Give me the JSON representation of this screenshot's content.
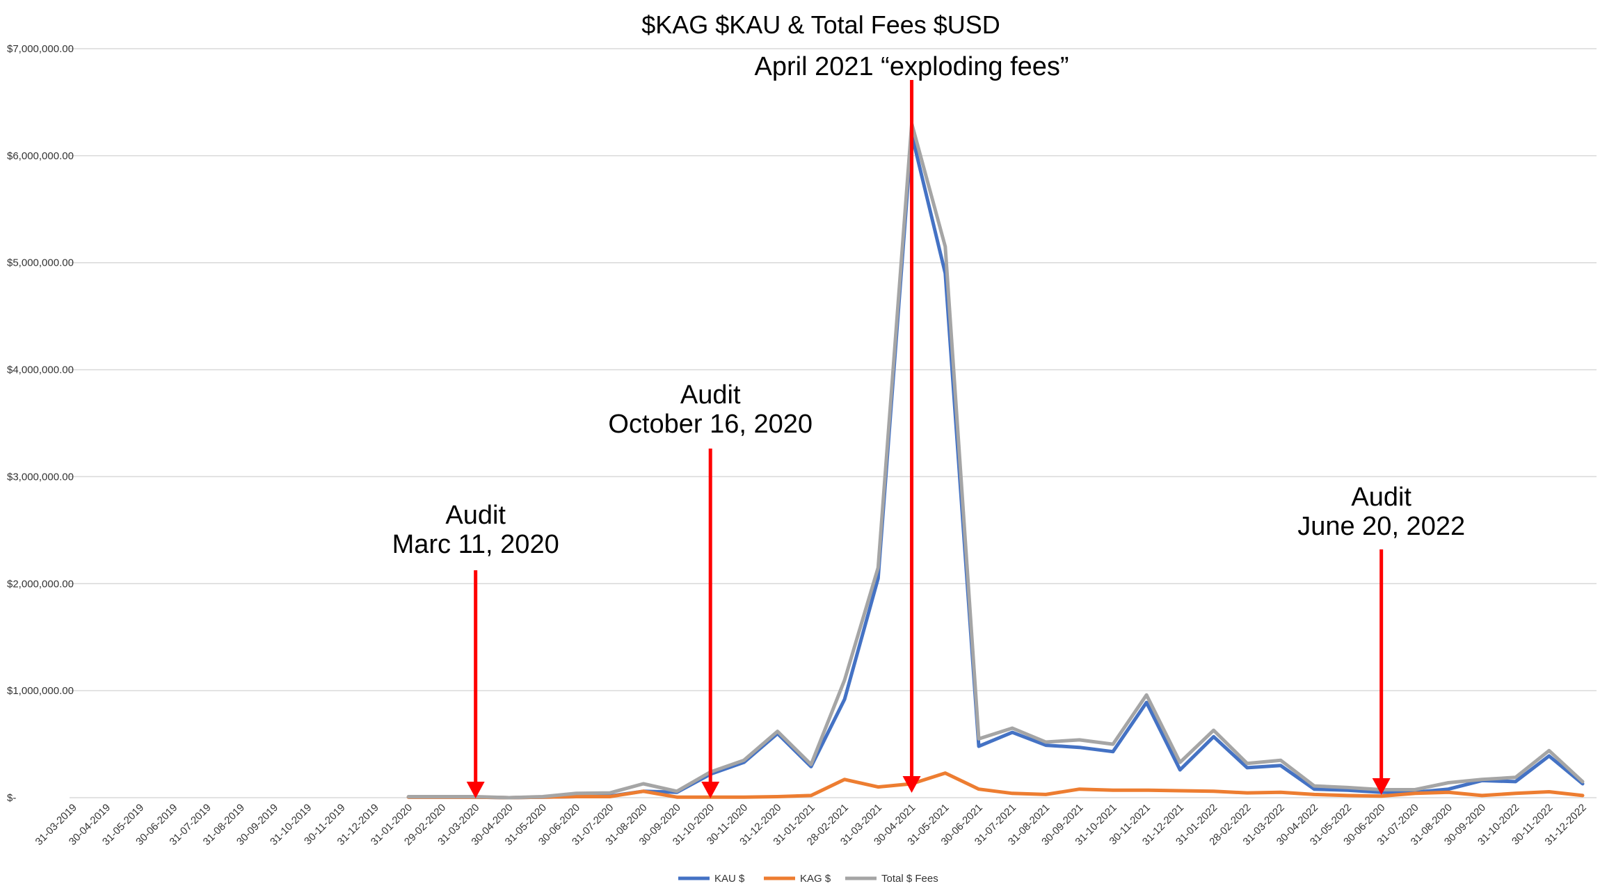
{
  "chart_data": {
    "type": "line",
    "title": "$KAG $KAU & Total Fees $USD",
    "xlabel": "",
    "ylabel": "",
    "ylim": [
      0,
      7000000
    ],
    "y_ticks": [
      {
        "value": 0,
        "label": "$-"
      },
      {
        "value": 1000000,
        "label": "$1,000,000.00"
      },
      {
        "value": 2000000,
        "label": "$2,000,000.00"
      },
      {
        "value": 3000000,
        "label": "$3,000,000.00"
      },
      {
        "value": 4000000,
        "label": "$4,000,000.00"
      },
      {
        "value": 5000000,
        "label": "$5,000,000.00"
      },
      {
        "value": 6000000,
        "label": "$6,000,000.00"
      },
      {
        "value": 7000000,
        "label": "$7,000,000.00"
      }
    ],
    "grid": true,
    "legend_position": "bottom",
    "categories": [
      "31-03-2019",
      "30-04-2019",
      "31-05-2019",
      "30-06-2019",
      "31-07-2019",
      "31-08-2019",
      "30-09-2019",
      "31-10-2019",
      "30-11-2019",
      "31-12-2019",
      "31-01-2020",
      "29-02-2020",
      "31-03-2020",
      "30-04-2020",
      "31-05-2020",
      "30-06-2020",
      "31-07-2020",
      "31-08-2020",
      "30-09-2020",
      "31-10-2020",
      "30-11-2020",
      "31-12-2020",
      "31-01-2021",
      "28-02-2021",
      "31-03-2021",
      "30-04-2021",
      "31-05-2021",
      "30-06-2021",
      "31-07-2021",
      "31-08-2021",
      "30-09-2021",
      "31-10-2021",
      "30-11-2021",
      "31-12-2021",
      "31-01-2022",
      "28-02-2022",
      "31-03-2022",
      "30-04-2022",
      "31-05-2022",
      "30-06-2020",
      "31-07-2020",
      "31-08-2020",
      "30-09-2020",
      "31-10-2022",
      "30-11-2022",
      "31-12-2022"
    ],
    "series": [
      {
        "name": "KAU $",
        "color": "#4472C4",
        "values": [
          null,
          null,
          null,
          null,
          null,
          null,
          null,
          null,
          null,
          null,
          5000,
          5000,
          5000,
          0,
          5000,
          10000,
          15000,
          60000,
          50000,
          220000,
          330000,
          600000,
          290000,
          920000,
          2050000,
          6200000,
          4900000,
          480000,
          610000,
          490000,
          470000,
          430000,
          890000,
          260000,
          570000,
          280000,
          300000,
          80000,
          70000,
          50000,
          50000,
          80000,
          160000,
          150000,
          390000,
          130000
        ]
      },
      {
        "name": "KAG $",
        "color": "#ED7D31",
        "values": [
          null,
          null,
          null,
          null,
          null,
          null,
          null,
          null,
          null,
          null,
          5000,
          5000,
          5000,
          0,
          5000,
          10000,
          10000,
          60000,
          5000,
          5000,
          5000,
          10000,
          20000,
          170000,
          100000,
          130000,
          230000,
          80000,
          40000,
          30000,
          80000,
          70000,
          70000,
          65000,
          60000,
          45000,
          50000,
          30000,
          20000,
          15000,
          40000,
          50000,
          20000,
          40000,
          55000,
          20000
        ]
      },
      {
        "name": "Total $ Fees",
        "color": "#A5A5A5",
        "values": [
          null,
          null,
          null,
          null,
          null,
          null,
          null,
          null,
          null,
          null,
          10000,
          10000,
          10000,
          0,
          10000,
          40000,
          45000,
          130000,
          60000,
          240000,
          350000,
          620000,
          310000,
          1100000,
          2150000,
          6300000,
          5150000,
          550000,
          650000,
          520000,
          540000,
          500000,
          960000,
          330000,
          630000,
          320000,
          350000,
          110000,
          95000,
          75000,
          75000,
          140000,
          170000,
          190000,
          440000,
          150000
        ]
      }
    ],
    "annotations": [
      {
        "lines": [
          "Audit",
          "Marc 11, 2020"
        ],
        "x_index": 12,
        "color": "#FF0000"
      },
      {
        "lines": [
          "Audit",
          "October 16, 2020"
        ],
        "x_index": 19,
        "color": "#FF0000"
      },
      {
        "lines": [
          "April 2021 “exploding fees”"
        ],
        "x_index": 25,
        "color": "#FF0000"
      },
      {
        "lines": [
          "Audit",
          "June 20, 2022"
        ],
        "x_index": 39,
        "color": "#FF0000"
      }
    ]
  }
}
